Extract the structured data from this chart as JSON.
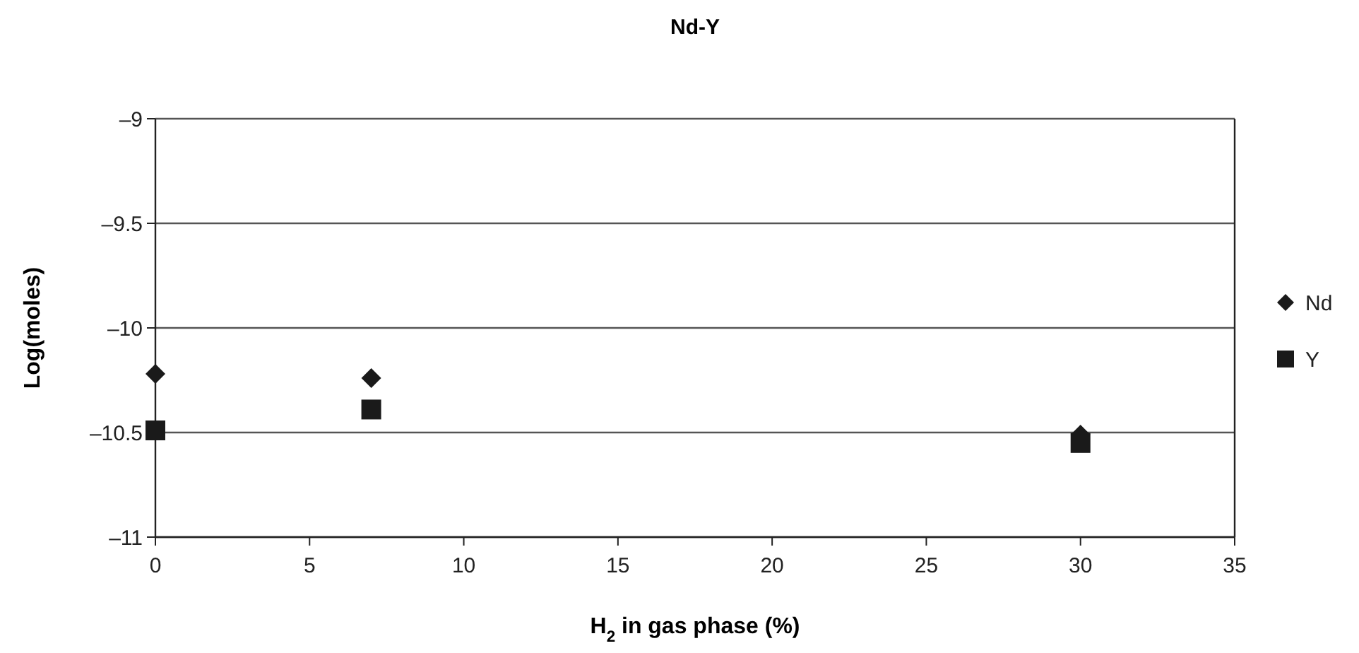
{
  "chart_data": {
    "type": "scatter",
    "title": "Nd-Y",
    "xlabel": "H$_{2}$ in gas phase (%)",
    "ylabel": "Log(moles)",
    "xlim": [
      0,
      35
    ],
    "xticks": [
      0,
      5,
      10,
      15,
      20,
      25,
      30,
      35
    ],
    "ylim": [
      -11,
      -9
    ],
    "yticks": [
      {
        "value": -11,
        "label": "–11"
      },
      {
        "value": -10.5,
        "label": "–10.5"
      },
      {
        "value": -10,
        "label": "–10"
      },
      {
        "value": -9.5,
        "label": "–9.5"
      },
      {
        "value": -9,
        "label": "–9"
      }
    ],
    "grid": "y",
    "legend": "right",
    "series": [
      {
        "name": "Nd",
        "color": "#1a1a1a",
        "marker": "diamond",
        "x": [
          0,
          7,
          30
        ],
        "values": [
          -10.22,
          -10.24,
          -10.51
        ]
      },
      {
        "name": "Y",
        "color": "#1a1a1a",
        "marker": "square",
        "x": [
          0,
          7,
          30
        ],
        "values": [
          -10.49,
          -10.39,
          -10.55
        ]
      }
    ]
  }
}
